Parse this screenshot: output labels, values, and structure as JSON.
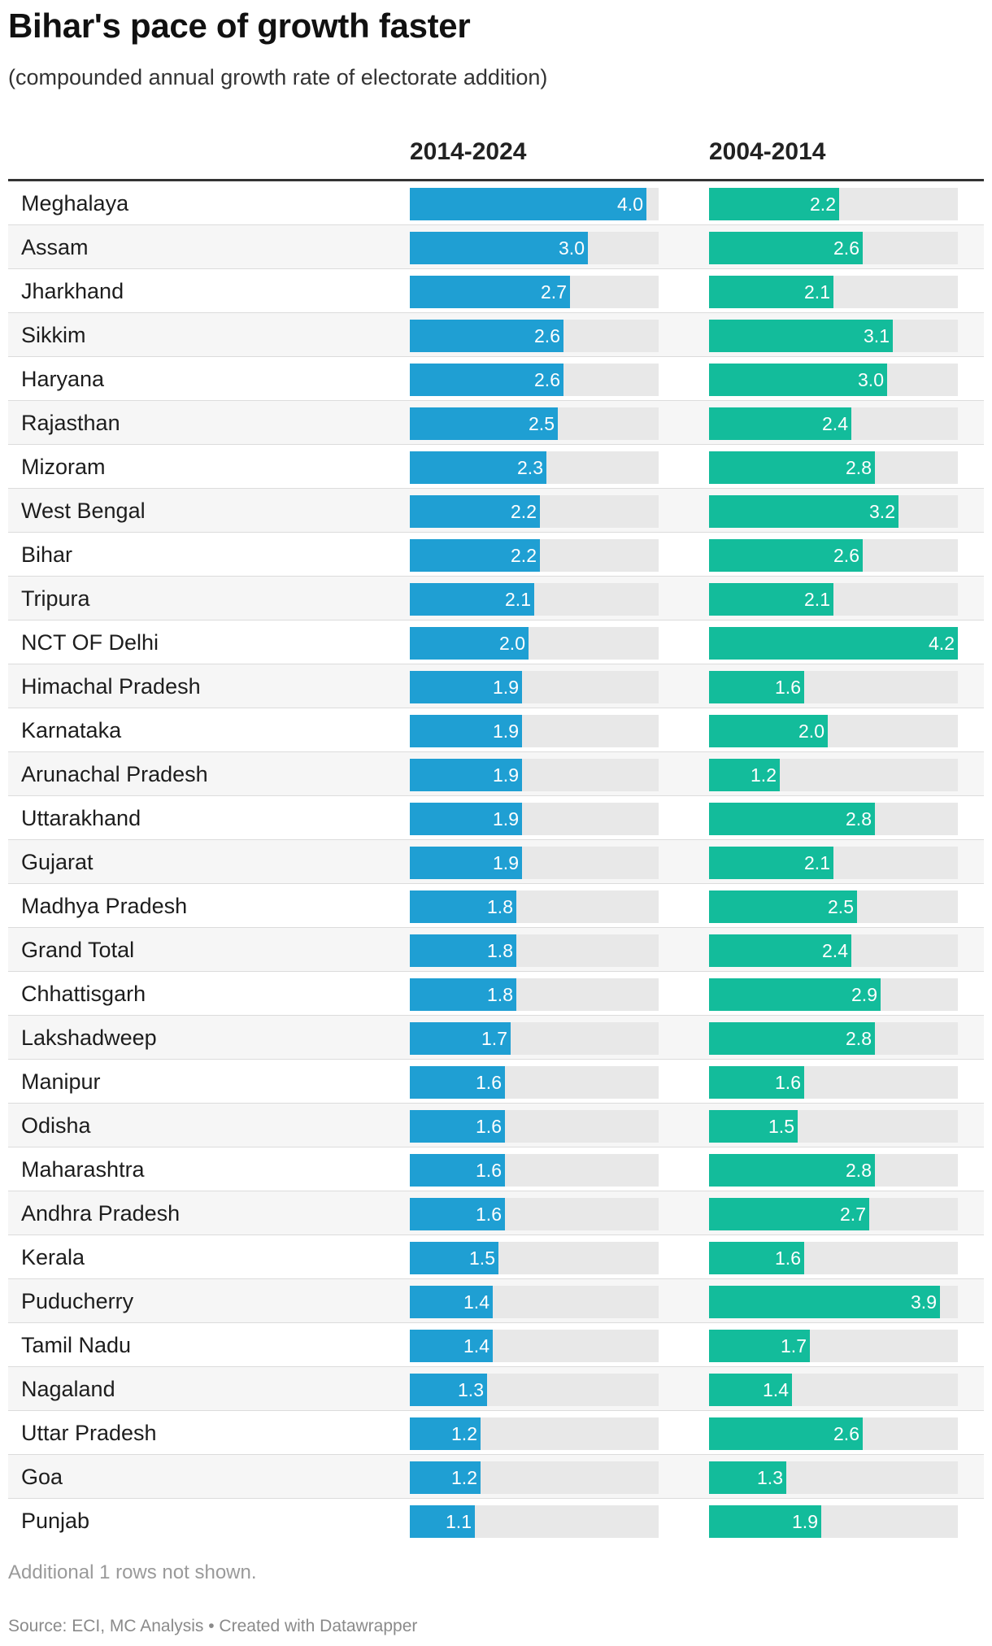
{
  "title": "Bihar's pace of growth faster",
  "subtitle": "(compounded annual growth rate of electorate addition)",
  "columns": [
    "2014-2024",
    "2004-2014"
  ],
  "note": "Additional 1 rows not shown.",
  "source": "Source: ECI, MC Analysis • Created with Datawrapper",
  "colors": {
    "series_a": "#1f9fd3",
    "series_b": "#13bc9b",
    "track": "#e8e8e8"
  },
  "chart_data": {
    "type": "table",
    "title": "Bihar's pace of growth faster",
    "subtitle": "(compounded annual growth rate of electorate addition)",
    "xlim": [
      0,
      4.2
    ],
    "categories": [
      "Meghalaya",
      "Assam",
      "Jharkhand",
      "Sikkim",
      "Haryana",
      "Rajasthan",
      "Mizoram",
      "West Bengal",
      "Bihar",
      "Tripura",
      "NCT OF Delhi",
      "Himachal Pradesh",
      "Karnataka",
      "Arunachal Pradesh",
      "Uttarakhand",
      "Gujarat",
      "Madhya Pradesh",
      "Grand Total",
      "Chhattisgarh",
      "Lakshadweep",
      "Manipur",
      "Odisha",
      "Maharashtra",
      "Andhra Pradesh",
      "Kerala",
      "Puducherry",
      "Tamil Nadu",
      "Nagaland",
      "Uttar Pradesh",
      "Goa",
      "Punjab"
    ],
    "series": [
      {
        "name": "2014-2024",
        "values": [
          4.0,
          3.0,
          2.7,
          2.6,
          2.6,
          2.5,
          2.3,
          2.2,
          2.2,
          2.1,
          2.0,
          1.9,
          1.9,
          1.9,
          1.9,
          1.9,
          1.8,
          1.8,
          1.8,
          1.7,
          1.6,
          1.6,
          1.6,
          1.6,
          1.5,
          1.4,
          1.4,
          1.3,
          1.2,
          1.2,
          1.1
        ]
      },
      {
        "name": "2004-2014",
        "values": [
          2.2,
          2.6,
          2.1,
          3.1,
          3.0,
          2.4,
          2.8,
          3.2,
          2.6,
          2.1,
          4.2,
          1.6,
          2.0,
          1.2,
          2.8,
          2.1,
          2.5,
          2.4,
          2.9,
          2.8,
          1.6,
          1.5,
          2.8,
          2.7,
          1.6,
          3.9,
          1.7,
          1.4,
          2.6,
          1.3,
          1.9
        ]
      }
    ]
  }
}
